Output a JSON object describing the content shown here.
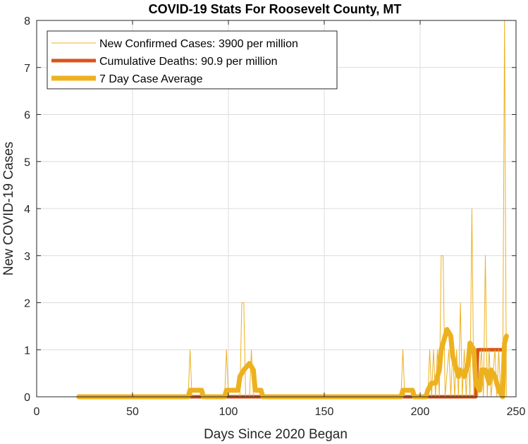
{
  "chart_data": {
    "type": "line",
    "title": "COVID-19 Stats For Roosevelt County, MT",
    "xlabel": "Days Since 2020 Began",
    "ylabel": "New COVID-19 Cases",
    "xlim": [
      0,
      250
    ],
    "ylim": [
      0,
      8
    ],
    "xticks": [
      "0",
      "50",
      "100",
      "150",
      "200",
      "250"
    ],
    "yticks": [
      "0",
      "1",
      "2",
      "3",
      "4",
      "5",
      "6",
      "7",
      "8"
    ],
    "grid": true,
    "legend_position": "top-left",
    "colors": {
      "new_cases": "#EDB120",
      "deaths": "#D95319",
      "avg": "#EDB120"
    },
    "series": [
      {
        "name": "New Confirmed Cases: 3900 per million",
        "style": "thin",
        "points": [
          [
            22,
            0
          ],
          [
            79,
            0
          ],
          [
            80,
            1
          ],
          [
            81,
            0
          ],
          [
            98,
            0
          ],
          [
            99,
            1
          ],
          [
            100,
            0
          ],
          [
            106,
            0
          ],
          [
            107,
            2
          ],
          [
            108,
            2
          ],
          [
            109,
            0
          ],
          [
            111,
            0
          ],
          [
            112,
            1
          ],
          [
            113,
            0
          ],
          [
            190,
            0
          ],
          [
            191,
            1
          ],
          [
            192,
            0
          ],
          [
            204,
            0
          ],
          [
            205,
            1
          ],
          [
            206,
            0
          ],
          [
            207,
            1
          ],
          [
            208,
            0
          ],
          [
            209,
            1
          ],
          [
            210,
            0
          ],
          [
            211,
            3
          ],
          [
            212,
            3
          ],
          [
            213,
            0
          ],
          [
            215,
            1
          ],
          [
            216,
            0
          ],
          [
            217,
            1
          ],
          [
            218,
            0
          ],
          [
            219,
            1
          ],
          [
            220,
            0
          ],
          [
            221,
            2
          ],
          [
            222,
            0
          ],
          [
            223,
            1
          ],
          [
            224,
            0
          ],
          [
            225,
            1
          ],
          [
            226,
            0
          ],
          [
            227,
            4
          ],
          [
            228,
            0
          ],
          [
            229,
            1
          ],
          [
            230,
            0
          ],
          [
            232,
            1
          ],
          [
            233,
            0
          ],
          [
            234,
            3
          ],
          [
            235,
            0
          ],
          [
            236,
            1
          ],
          [
            237,
            0
          ],
          [
            239,
            1
          ],
          [
            240,
            0
          ],
          [
            241,
            1
          ],
          [
            242,
            0
          ],
          [
            243,
            0
          ],
          [
            244,
            8
          ],
          [
            245,
            0
          ]
        ]
      },
      {
        "name": "Cumulative Deaths: 90.9 per million",
        "style": "medium",
        "points": [
          [
            22,
            0
          ],
          [
            229,
            0
          ],
          [
            230,
            1
          ],
          [
            244,
            1
          ]
        ]
      },
      {
        "name": "7 Day Case Average",
        "style": "thick",
        "points": [
          [
            22,
            0
          ],
          [
            79,
            0
          ],
          [
            80,
            0.14
          ],
          [
            86,
            0.14
          ],
          [
            87,
            0
          ],
          [
            98,
            0
          ],
          [
            99,
            0.14
          ],
          [
            105,
            0.14
          ],
          [
            106,
            0.43
          ],
          [
            108,
            0.57
          ],
          [
            111,
            0.71
          ],
          [
            113,
            0.57
          ],
          [
            114,
            0.14
          ],
          [
            117,
            0.14
          ],
          [
            118,
            0
          ],
          [
            190,
            0
          ],
          [
            191,
            0.14
          ],
          [
            196,
            0.14
          ],
          [
            197,
            0
          ],
          [
            203,
            0
          ],
          [
            204,
            0.14
          ],
          [
            206,
            0.29
          ],
          [
            208,
            0.29
          ],
          [
            210,
            0.57
          ],
          [
            211,
            1.0
          ],
          [
            213,
            1.29
          ],
          [
            214,
            1.43
          ],
          [
            216,
            1.29
          ],
          [
            217,
            0.86
          ],
          [
            219,
            0.57
          ],
          [
            220,
            0.43
          ],
          [
            221,
            0.57
          ],
          [
            223,
            0.43
          ],
          [
            225,
            0.71
          ],
          [
            226,
            1.14
          ],
          [
            228,
            1.0
          ],
          [
            229,
            0.29
          ],
          [
            231,
            0.14
          ],
          [
            232,
            0.57
          ],
          [
            234,
            0.57
          ],
          [
            236,
            0.29
          ],
          [
            237,
            0.57
          ],
          [
            239,
            0.43
          ],
          [
            241,
            0.14
          ],
          [
            243,
            0
          ],
          [
            244,
            1.14
          ],
          [
            245,
            1.29
          ]
        ]
      }
    ]
  }
}
